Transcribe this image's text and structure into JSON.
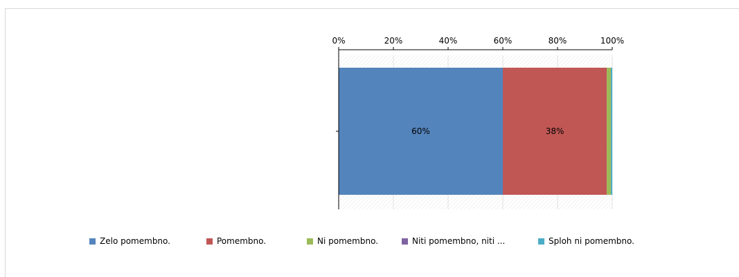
{
  "chart_data": {
    "type": "bar",
    "orientation": "horizontal",
    "stacked": true,
    "normalized": true,
    "categories": [
      ""
    ],
    "xlim": [
      0,
      100
    ],
    "xticks": [
      "0%",
      "20%",
      "40%",
      "60%",
      "80%",
      "100%"
    ],
    "axis_position": "top",
    "grid": true,
    "legend_position": "bottom",
    "series": [
      {
        "name": "Zelo pomembno.",
        "values": [
          60
        ],
        "label": "60%",
        "color": "#5484bc"
      },
      {
        "name": "Pomembno.",
        "values": [
          38
        ],
        "label": "38%",
        "color": "#c05755"
      },
      {
        "name": "Ni pomembno.",
        "values": [
          1.5
        ],
        "label": "",
        "color": "#9bbb59"
      },
      {
        "name": "Niti pomembno, niti ...",
        "values": [
          0
        ],
        "label": "",
        "color": "#8064a2"
      },
      {
        "name": "Sploh ni pomembno.",
        "values": [
          0.5
        ],
        "label": "",
        "color": "#4bacc6"
      }
    ]
  }
}
